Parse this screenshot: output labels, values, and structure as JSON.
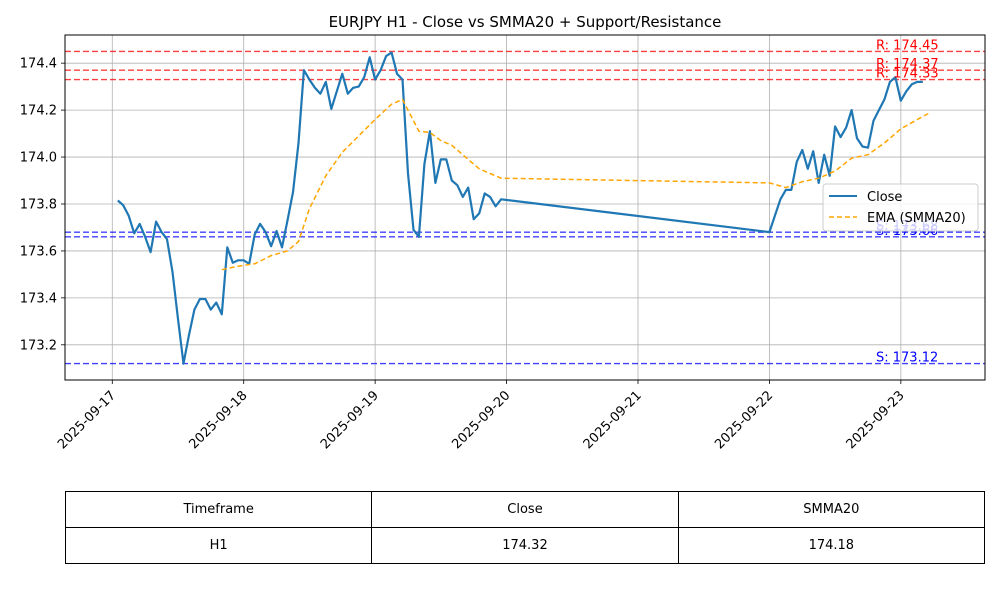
{
  "chart_data": {
    "type": "line",
    "title": "EURJPY H1 - Close vs SMMA20 + Support/Resistance",
    "xlabel": "",
    "ylabel": "",
    "x_ticks": [
      "2025-09-17",
      "2025-09-18",
      "2025-09-19",
      "2025-09-20",
      "2025-09-21",
      "2025-09-22",
      "2025-09-23"
    ],
    "y_ticks": [
      "173.2",
      "173.4",
      "173.6",
      "173.8",
      "174.0",
      "174.2",
      "174.4"
    ],
    "xlim": [
      "2025-09-16T15:22",
      "2025-09-23T15:22"
    ],
    "ylim": [
      173.05,
      174.52
    ],
    "grid": true,
    "legend_position": "center-right",
    "series": [
      {
        "name": "Close",
        "color": "#1f77b4",
        "style": "solid",
        "points": [
          [
            "2025-09-17T01:00",
            173.815
          ],
          [
            "2025-09-17T02:00",
            173.795
          ],
          [
            "2025-09-17T03:00",
            173.75
          ],
          [
            "2025-09-17T04:00",
            173.675
          ],
          [
            "2025-09-17T05:00",
            173.715
          ],
          [
            "2025-09-17T06:00",
            173.66
          ],
          [
            "2025-09-17T07:00",
            173.595
          ],
          [
            "2025-09-17T08:00",
            173.725
          ],
          [
            "2025-09-17T09:00",
            173.68
          ],
          [
            "2025-09-17T10:00",
            173.65
          ],
          [
            "2025-09-17T11:00",
            173.51
          ],
          [
            "2025-09-17T12:00",
            173.31
          ],
          [
            "2025-09-17T13:00",
            173.12
          ],
          [
            "2025-09-17T14:00",
            173.24
          ],
          [
            "2025-09-17T15:00",
            173.35
          ],
          [
            "2025-09-17T16:00",
            173.395
          ],
          [
            "2025-09-17T17:00",
            173.395
          ],
          [
            "2025-09-17T18:00",
            173.35
          ],
          [
            "2025-09-17T19:00",
            173.38
          ],
          [
            "2025-09-17T20:00",
            173.33
          ],
          [
            "2025-09-17T21:00",
            173.615
          ],
          [
            "2025-09-17T22:00",
            173.55
          ],
          [
            "2025-09-17T23:00",
            173.56
          ],
          [
            "2025-09-18T00:00",
            173.56
          ],
          [
            "2025-09-18T01:00",
            173.545
          ],
          [
            "2025-09-18T02:00",
            173.67
          ],
          [
            "2025-09-18T03:00",
            173.715
          ],
          [
            "2025-09-18T04:00",
            173.68
          ],
          [
            "2025-09-18T05:00",
            173.62
          ],
          [
            "2025-09-18T06:00",
            173.685
          ],
          [
            "2025-09-18T07:00",
            173.615
          ],
          [
            "2025-09-18T08:00",
            173.73
          ],
          [
            "2025-09-18T09:00",
            173.85
          ],
          [
            "2025-09-18T10:00",
            174.06
          ],
          [
            "2025-09-18T11:00",
            174.37
          ],
          [
            "2025-09-18T12:00",
            174.33
          ],
          [
            "2025-09-18T13:00",
            174.295
          ],
          [
            "2025-09-18T14:00",
            174.27
          ],
          [
            "2025-09-18T15:00",
            174.32
          ],
          [
            "2025-09-18T16:00",
            174.205
          ],
          [
            "2025-09-18T17:00",
            174.28
          ],
          [
            "2025-09-18T18:00",
            174.355
          ],
          [
            "2025-09-18T19:00",
            174.27
          ],
          [
            "2025-09-18T20:00",
            174.295
          ],
          [
            "2025-09-18T21:00",
            174.3
          ],
          [
            "2025-09-18T22:00",
            174.34
          ],
          [
            "2025-09-18T23:00",
            174.425
          ],
          [
            "2025-09-19T00:00",
            174.33
          ],
          [
            "2025-09-19T01:00",
            174.37
          ],
          [
            "2025-09-19T02:00",
            174.43
          ],
          [
            "2025-09-19T03:00",
            174.445
          ],
          [
            "2025-09-19T04:00",
            174.355
          ],
          [
            "2025-09-19T05:00",
            174.33
          ],
          [
            "2025-09-19T06:00",
            173.93
          ],
          [
            "2025-09-19T07:00",
            173.69
          ],
          [
            "2025-09-19T08:00",
            173.66
          ],
          [
            "2025-09-19T09:00",
            173.97
          ],
          [
            "2025-09-19T10:00",
            174.11
          ],
          [
            "2025-09-19T11:00",
            173.89
          ],
          [
            "2025-09-19T12:00",
            173.99
          ],
          [
            "2025-09-19T13:00",
            173.99
          ],
          [
            "2025-09-19T14:00",
            173.9
          ],
          [
            "2025-09-19T15:00",
            173.88
          ],
          [
            "2025-09-19T16:00",
            173.83
          ],
          [
            "2025-09-19T17:00",
            173.87
          ],
          [
            "2025-09-19T18:00",
            173.735
          ],
          [
            "2025-09-19T19:00",
            173.76
          ],
          [
            "2025-09-19T20:00",
            173.845
          ],
          [
            "2025-09-19T21:00",
            173.83
          ],
          [
            "2025-09-19T22:00",
            173.79
          ],
          [
            "2025-09-19T23:00",
            173.82
          ],
          [
            "2025-09-22T00:00",
            173.68
          ],
          [
            "2025-09-22T01:00",
            173.75
          ],
          [
            "2025-09-22T02:00",
            173.82
          ],
          [
            "2025-09-22T03:00",
            173.86
          ],
          [
            "2025-09-22T04:00",
            173.86
          ],
          [
            "2025-09-22T05:00",
            173.98
          ],
          [
            "2025-09-22T06:00",
            174.03
          ],
          [
            "2025-09-22T07:00",
            173.95
          ],
          [
            "2025-09-22T08:00",
            174.025
          ],
          [
            "2025-09-22T09:00",
            173.89
          ],
          [
            "2025-09-22T10:00",
            174.01
          ],
          [
            "2025-09-22T11:00",
            173.92
          ],
          [
            "2025-09-22T12:00",
            174.13
          ],
          [
            "2025-09-22T13:00",
            174.085
          ],
          [
            "2025-09-22T14:00",
            174.125
          ],
          [
            "2025-09-22T15:00",
            174.2
          ],
          [
            "2025-09-22T16:00",
            174.08
          ],
          [
            "2025-09-22T17:00",
            174.045
          ],
          [
            "2025-09-22T18:00",
            174.04
          ],
          [
            "2025-09-22T19:00",
            174.155
          ],
          [
            "2025-09-22T20:00",
            174.2
          ],
          [
            "2025-09-22T21:00",
            174.245
          ],
          [
            "2025-09-22T22:00",
            174.32
          ],
          [
            "2025-09-22T23:00",
            174.34
          ],
          [
            "2025-09-23T00:00",
            174.24
          ],
          [
            "2025-09-23T01:00",
            174.28
          ],
          [
            "2025-09-23T02:00",
            174.31
          ],
          [
            "2025-09-23T03:00",
            174.32
          ],
          [
            "2025-09-23T04:00",
            174.32
          ]
        ]
      },
      {
        "name": "EMA (SMMA20)",
        "color": "#ffa500",
        "style": "dashed",
        "points": [
          [
            "2025-09-17T20:00",
            173.52
          ],
          [
            "2025-09-17T23:00",
            173.535
          ],
          [
            "2025-09-18T02:00",
            173.545
          ],
          [
            "2025-09-18T05:00",
            173.58
          ],
          [
            "2025-09-18T08:00",
            173.6
          ],
          [
            "2025-09-18T10:00",
            173.64
          ],
          [
            "2025-09-18T12:00",
            173.78
          ],
          [
            "2025-09-18T15:00",
            173.92
          ],
          [
            "2025-09-18T18:00",
            174.02
          ],
          [
            "2025-09-18T21:00",
            174.09
          ],
          [
            "2025-09-19T00:00",
            174.16
          ],
          [
            "2025-09-19T03:00",
            174.225
          ],
          [
            "2025-09-19T05:00",
            174.245
          ],
          [
            "2025-09-19T06:00",
            174.2
          ],
          [
            "2025-09-19T08:00",
            174.11
          ],
          [
            "2025-09-19T10:00",
            174.105
          ],
          [
            "2025-09-19T12:00",
            174.07
          ],
          [
            "2025-09-19T14:00",
            174.05
          ],
          [
            "2025-09-19T17:00",
            173.99
          ],
          [
            "2025-09-19T19:00",
            173.95
          ],
          [
            "2025-09-19T21:00",
            173.93
          ],
          [
            "2025-09-19T23:00",
            173.91
          ],
          [
            "2025-09-22T00:00",
            173.89
          ],
          [
            "2025-09-22T03:00",
            173.87
          ],
          [
            "2025-09-22T06:00",
            173.895
          ],
          [
            "2025-09-22T09:00",
            173.91
          ],
          [
            "2025-09-22T12:00",
            173.94
          ],
          [
            "2025-09-22T15:00",
            173.995
          ],
          [
            "2025-09-22T18:00",
            174.01
          ],
          [
            "2025-09-22T21:00",
            174.06
          ],
          [
            "2025-09-23T00:00",
            174.12
          ],
          [
            "2025-09-23T03:00",
            174.16
          ],
          [
            "2025-09-23T05:00",
            174.185
          ]
        ]
      }
    ],
    "resistance_levels": [
      174.45,
      174.37,
      174.33
    ],
    "resistance_labels": [
      "R: 174.45",
      "R: 174.37",
      "R: 174.33"
    ],
    "resistance_color": "#ff0000",
    "support_levels": [
      173.68,
      173.66,
      173.12
    ],
    "support_labels": [
      "S: 173.68",
      "S: 173.66",
      "S: 173.12"
    ],
    "support_color": "#0000ff",
    "table": {
      "headers": [
        "Timeframe",
        "Close",
        "SMMA20"
      ],
      "rows": [
        [
          "H1",
          "174.32",
          "174.18"
        ]
      ]
    }
  }
}
